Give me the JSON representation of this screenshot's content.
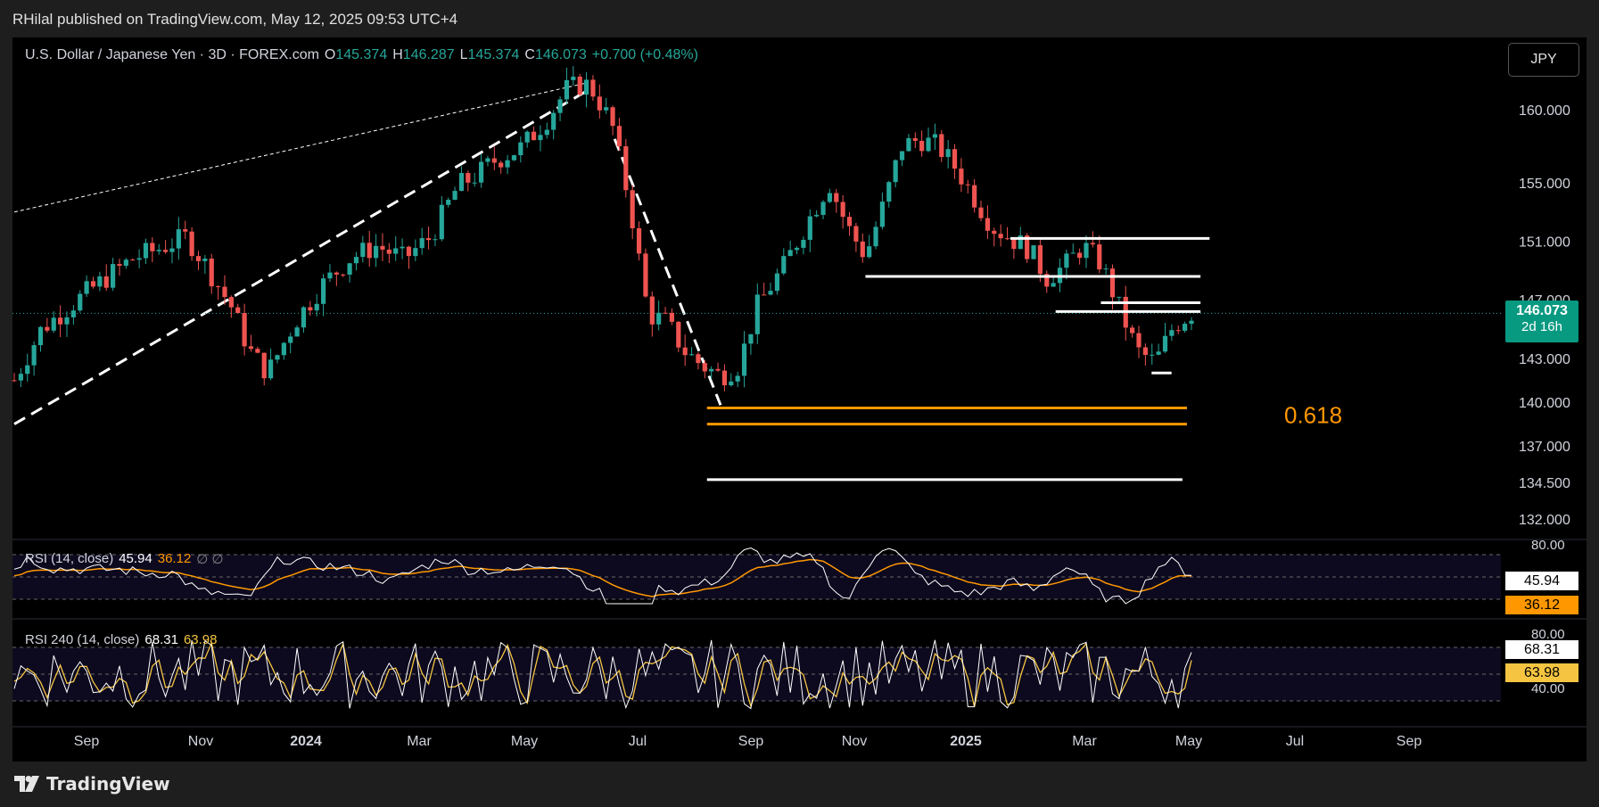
{
  "published_line": "RHilal published on TradingView.com, May 12, 2025 09:53 UTC+4",
  "footer_brand": "TradingView",
  "legend": {
    "symbol": "U.S. Dollar / Japanese Yen · 3D · FOREX.com",
    "open_label": "O",
    "open": "145.374",
    "high_label": "H",
    "high": "146.287",
    "low_label": "L",
    "low": "145.374",
    "close_label": "C",
    "close": "146.073",
    "change": "+0.700 (+0.48%)"
  },
  "currency_button": "JPY",
  "price_tag": {
    "price": "146.073",
    "countdown": "2d 16h"
  },
  "fib_label": "0.618",
  "rsi1": {
    "label": "RSI (14, close)",
    "value": "45.94",
    "ma": "36.12",
    "extra": "∅ ∅"
  },
  "rsi2": {
    "label": "RSI 240 (14, close)",
    "value": "68.31",
    "ma": "63.98"
  },
  "colors": {
    "up": "#26a69a",
    "down": "#ef5350",
    "orange": "#ff9800",
    "rsi2_ma": "#f5c542"
  },
  "chart_data": {
    "type": "candlestick",
    "title": "U.S. Dollar / Japanese Yen · 3D · FOREX.com",
    "price_axis_ticks": [
      "160.000",
      "155.000",
      "151.000",
      "147.000",
      "143.000",
      "140.000",
      "137.000",
      "134.500",
      "132.000"
    ],
    "price_axis_values": [
      160,
      155,
      151,
      147,
      143,
      140,
      137,
      134.5,
      132
    ],
    "time_axis_ticks": [
      "Sep",
      "Nov",
      "2024",
      "Mar",
      "May",
      "Jul",
      "Sep",
      "Nov",
      "2025",
      "Mar",
      "May",
      "Jul",
      "Sep"
    ],
    "ylim": [
      132,
      164
    ],
    "price_path": [
      [
        0,
        141.5
      ],
      [
        0.03,
        145
      ],
      [
        0.08,
        147.5
      ],
      [
        0.13,
        149.8
      ],
      [
        0.16,
        150.5
      ],
      [
        0.19,
        151.3
      ],
      [
        0.21,
        149.5
      ],
      [
        0.24,
        146.5
      ],
      [
        0.26,
        143.5
      ],
      [
        0.28,
        142
      ],
      [
        0.31,
        145.5
      ],
      [
        0.34,
        148
      ],
      [
        0.37,
        149.8
      ],
      [
        0.4,
        150.7
      ],
      [
        0.43,
        149.8
      ],
      [
        0.46,
        151.3
      ],
      [
        0.49,
        154.8
      ],
      [
        0.51,
        155.5
      ],
      [
        0.53,
        156.5
      ],
      [
        0.56,
        157.4
      ],
      [
        0.59,
        159.5
      ],
      [
        0.61,
        161.4
      ],
      [
        0.63,
        161.8
      ],
      [
        0.64,
        161.2
      ],
      [
        0.66,
        159
      ],
      [
        0.68,
        153.5
      ],
      [
        0.7,
        146
      ],
      [
        0.72,
        145.5
      ],
      [
        0.74,
        143.5
      ],
      [
        0.76,
        142.5
      ],
      [
        0.78,
        141.8
      ],
      [
        0.8,
        142.5
      ],
      [
        0.82,
        146.5
      ],
      [
        0.85,
        149.3
      ],
      [
        0.88,
        152.8
      ],
      [
        0.9,
        155
      ],
      [
        0.92,
        152
      ],
      [
        0.94,
        150
      ],
      [
        0.96,
        153.5
      ],
      [
        0.98,
        157.5
      ],
      [
        1.0,
        158
      ],
      [
        1.02,
        157.5
      ],
      [
        1.04,
        156
      ],
      [
        1.06,
        154
      ],
      [
        1.08,
        152
      ],
      [
        1.1,
        151.2
      ],
      [
        1.12,
        150.5
      ],
      [
        1.14,
        148.5
      ],
      [
        1.16,
        149.3
      ],
      [
        1.18,
        150.7
      ],
      [
        1.2,
        149.5
      ],
      [
        1.22,
        146.5
      ],
      [
        1.24,
        143.5
      ],
      [
        1.26,
        142.7
      ],
      [
        1.28,
        145.2
      ],
      [
        1.3,
        146.1
      ]
    ],
    "horizontal_levels": [
      {
        "price": 151.2,
        "color": "white",
        "x_start": 1.1,
        "x_end": 1.32
      },
      {
        "price": 148.6,
        "color": "white",
        "x_start": 0.94,
        "x_end": 1.31
      },
      {
        "price": 146.8,
        "color": "white",
        "x_start": 1.2,
        "x_end": 1.31
      },
      {
        "price": 146.2,
        "color": "white",
        "x_start": 1.15,
        "x_end": 1.31
      },
      {
        "price": 142.0,
        "color": "white",
        "x_start": 1.256,
        "x_end": 1.278
      },
      {
        "price": 139.6,
        "color": "orange",
        "x_start": 0.765,
        "x_end": 1.295,
        "label": "0.618"
      },
      {
        "price": 138.5,
        "color": "orange",
        "x_start": 0.765,
        "x_end": 1.295
      },
      {
        "price": 134.7,
        "color": "white",
        "x_start": 0.765,
        "x_end": 1.29
      }
    ],
    "trendlines": [
      {
        "style": "dashed",
        "from": [
          0,
          138.5
        ],
        "to": [
          0.63,
          161.2
        ]
      },
      {
        "style": "dotted",
        "from": [
          0,
          153
        ],
        "to": [
          0.63,
          161.8
        ]
      },
      {
        "style": "dashed",
        "from": [
          0.663,
          158
        ],
        "to": [
          0.78,
          139.8
        ]
      }
    ],
    "rsi": {
      "label": "RSI (14, close)",
      "value": 45.94,
      "ma": 36.12,
      "levels": [
        30,
        50,
        70
      ],
      "axis_tick": 80
    },
    "rsi_240": {
      "label": "RSI 240 (14, close)",
      "value": 68.31,
      "ma": 63.98,
      "levels": [
        30,
        50,
        70
      ],
      "axis_ticks": [
        80,
        40
      ]
    }
  }
}
